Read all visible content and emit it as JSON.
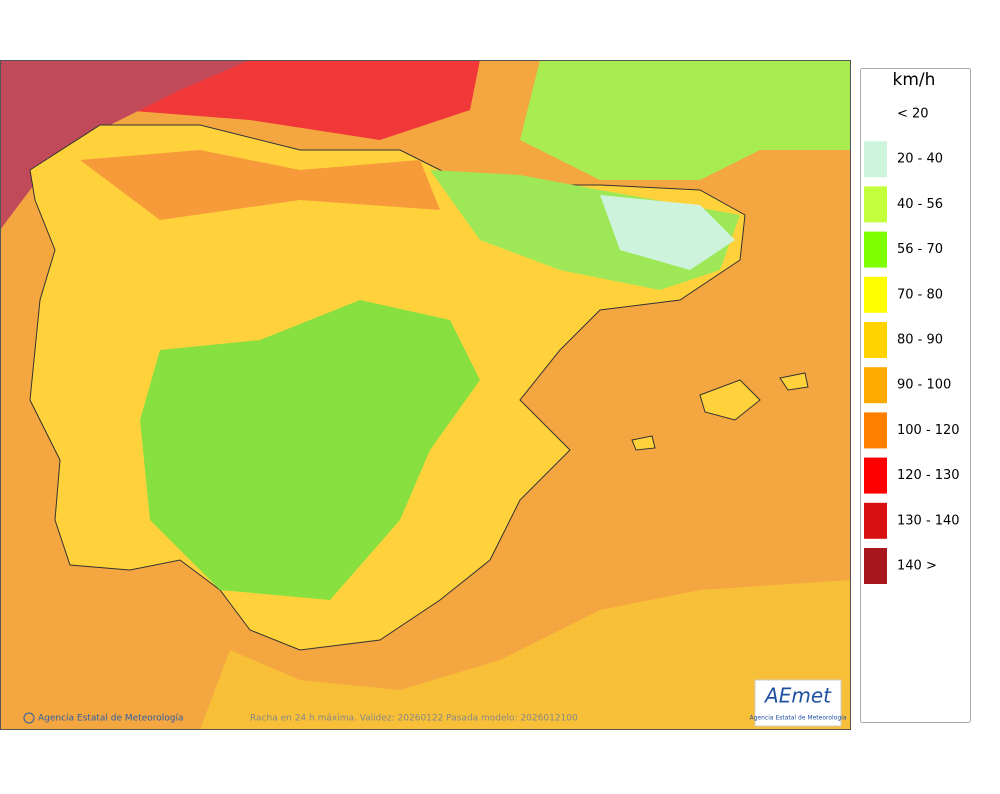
{
  "map": {
    "credit": "Agencia Estatal de Meteorología",
    "caption": "Racha en 24 h máxima. Validez: 20260122 Pasada modelo: 2026012100",
    "logo": {
      "title": "AEmet",
      "subtitle": "Agencia Estatal de Meteorología"
    }
  },
  "legend": {
    "title": "km/h",
    "items": [
      {
        "label": "< 20"
      },
      {
        "label": "20 - 40",
        "color": "#ccf5dc"
      },
      {
        "label": "40 - 56",
        "color": "#c4ff3c"
      },
      {
        "label": "56 - 70",
        "color": "#80ff00"
      },
      {
        "label": "70 - 80",
        "color": "#ffff00"
      },
      {
        "label": "80 - 90",
        "color": "#ffd200"
      },
      {
        "label": "90 - 100",
        "color": "#ffaa00"
      },
      {
        "label": "100 - 120",
        "color": "#ff8000"
      },
      {
        "label": "120 - 130",
        "color": "#ff0000"
      },
      {
        "label": "130 - 140",
        "color": "#d81010"
      },
      {
        "label": "140 >",
        "color": "#a8161e"
      }
    ]
  }
}
